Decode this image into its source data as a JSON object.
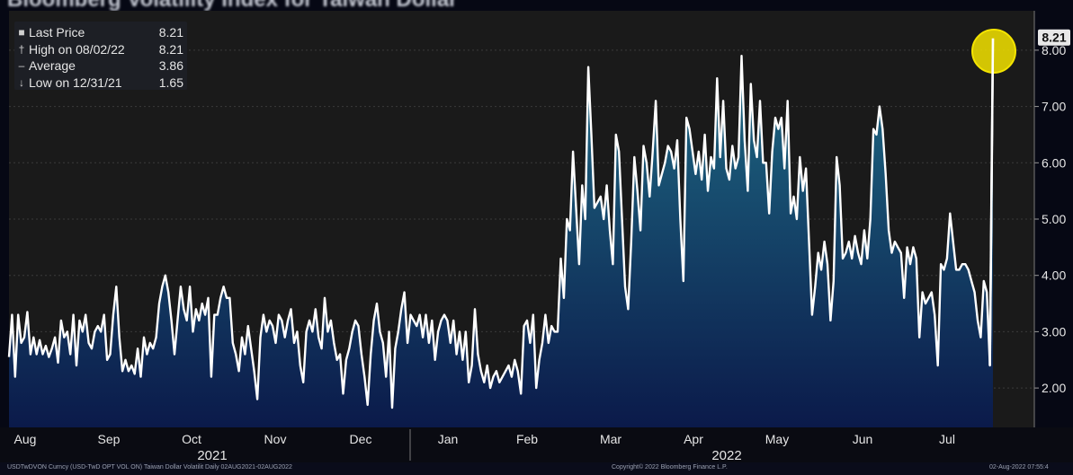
{
  "title": "Bloomberg Volatility Index for Taiwan Dollar",
  "legend": [
    {
      "marker": "■",
      "label": "Last Price",
      "value": "8.21"
    },
    {
      "marker": "†",
      "label": "High on 08/02/22",
      "value": "8.21"
    },
    {
      "marker": "–",
      "label": "Average",
      "value": "3.86"
    },
    {
      "marker": "↓",
      "label": "Low on 12/31/21",
      "value": "1.65"
    }
  ],
  "last_price_tag": "8.21",
  "footer": {
    "left": "USDTwDVON Curncy (USD-TwD OPT VOL ON) Taiwan Dollar Volatilit Daily 02AUG2021-02AUG2022",
    "center": "Copyright© 2022 Bloomberg Finance L.P.",
    "right": "02-Aug-2022 07:55:4"
  },
  "chart_data": {
    "type": "area",
    "ylim": [
      1.3,
      8.7
    ],
    "yticks": [
      "2.00",
      "3.00",
      "4.00",
      "5.00",
      "6.00",
      "7.00",
      "8.00"
    ],
    "month_labels": [
      "Aug",
      "Sep",
      "Oct",
      "Nov",
      "Dec",
      "Jan",
      "Feb",
      "Mar",
      "Apr",
      "May",
      "Jun",
      "Jul"
    ],
    "year_labels": [
      "2021",
      "2022"
    ],
    "colors": {
      "line": "#ffffff",
      "fill_top": "#1f6e87",
      "fill_bottom": "#0b1a4a",
      "highlight": "#f4e400"
    },
    "y": [
      2.55,
      3.3,
      2.2,
      3.3,
      2.8,
      2.9,
      3.35,
      2.6,
      2.9,
      2.6,
      2.85,
      2.6,
      2.75,
      2.55,
      2.7,
      2.9,
      2.45,
      3.2,
      2.9,
      3.0,
      2.6,
      3.3,
      2.4,
      3.2,
      3.0,
      3.3,
      2.8,
      2.7,
      3.0,
      3.1,
      3.0,
      3.3,
      2.5,
      2.6,
      3.3,
      3.8,
      2.9,
      2.3,
      2.5,
      2.3,
      2.4,
      2.25,
      2.7,
      2.2,
      2.9,
      2.6,
      2.8,
      2.7,
      2.9,
      3.5,
      3.8,
      4.0,
      3.7,
      3.2,
      2.6,
      3.2,
      3.8,
      3.4,
      3.2,
      3.8,
      3.0,
      3.4,
      3.2,
      3.5,
      3.3,
      3.6,
      2.2,
      3.3,
      3.3,
      3.6,
      3.8,
      3.6,
      3.6,
      2.8,
      2.6,
      2.3,
      2.9,
      2.6,
      3.1,
      2.7,
      2.3,
      1.8,
      2.9,
      3.3,
      3.0,
      3.2,
      3.1,
      2.8,
      3.3,
      3.2,
      2.9,
      3.2,
      3.4,
      2.8,
      3.0,
      2.4,
      2.1,
      3.0,
      3.2,
      3.0,
      3.4,
      2.9,
      2.7,
      3.6,
      3.0,
      3.2,
      2.8,
      2.5,
      2.6,
      1.9,
      2.5,
      2.7,
      3.0,
      3.2,
      3.1,
      2.6,
      2.2,
      1.7,
      2.6,
      3.2,
      3.5,
      3.0,
      2.8,
      2.2,
      3.0,
      1.65,
      2.7,
      3.0,
      3.4,
      3.7,
      2.8,
      3.3,
      3.2,
      3.1,
      3.3,
      2.9,
      3.3,
      2.8,
      3.2,
      2.5,
      3.0,
      3.2,
      3.3,
      3.2,
      2.8,
      3.2,
      2.6,
      3.0,
      2.5,
      3.0,
      2.1,
      2.4,
      3.4,
      2.6,
      2.3,
      2.1,
      2.4,
      2.0,
      2.2,
      2.3,
      2.1,
      2.2,
      2.3,
      2.4,
      2.2,
      2.5,
      2.3,
      1.9,
      3.1,
      3.2,
      2.8,
      3.3,
      2.0,
      2.5,
      2.8,
      3.3,
      2.8,
      3.1,
      3.0,
      3.0,
      4.3,
      3.6,
      5.0,
      4.8,
      6.2,
      5.2,
      4.2,
      5.6,
      5.0,
      7.7,
      6.5,
      5.2,
      5.3,
      5.4,
      5.0,
      5.6,
      4.8,
      4.2,
      6.5,
      6.2,
      5.0,
      3.8,
      3.4,
      4.6,
      6.1,
      5.5,
      4.8,
      6.3,
      6.0,
      5.4,
      6.2,
      7.1,
      5.6,
      5.8,
      6.0,
      6.3,
      6.2,
      5.9,
      6.4,
      5.0,
      3.9,
      6.8,
      6.6,
      6.2,
      5.8,
      6.2,
      5.7,
      6.5,
      5.5,
      6.1,
      5.9,
      7.5,
      6.1,
      7.1,
      5.9,
      5.7,
      6.3,
      5.9,
      6.1,
      7.9,
      6.4,
      5.5,
      7.4,
      6.4,
      6.1,
      7.1,
      6.0,
      6.0,
      5.1,
      6.2,
      6.8,
      6.6,
      6.8,
      5.9,
      7.1,
      5.1,
      5.4,
      5.0,
      6.1,
      5.5,
      5.9,
      4.6,
      3.3,
      3.8,
      4.4,
      4.1,
      4.6,
      4.2,
      3.2,
      3.9,
      6.1,
      5.6,
      4.3,
      4.4,
      4.6,
      4.3,
      4.7,
      4.4,
      4.2,
      4.8,
      4.3,
      5.0,
      6.6,
      6.5,
      7.0,
      6.6,
      5.8,
      4.8,
      4.4,
      4.6,
      4.5,
      4.4,
      3.6,
      4.5,
      4.2,
      4.5,
      4.3,
      2.9,
      3.7,
      3.5,
      3.6,
      3.7,
      3.3,
      2.4,
      4.2,
      4.1,
      4.3,
      5.1,
      4.6,
      4.1,
      4.1,
      4.2,
      4.2,
      4.1,
      3.9,
      3.7,
      3.2,
      2.9,
      3.9,
      3.7,
      2.4,
      8.21
    ]
  }
}
